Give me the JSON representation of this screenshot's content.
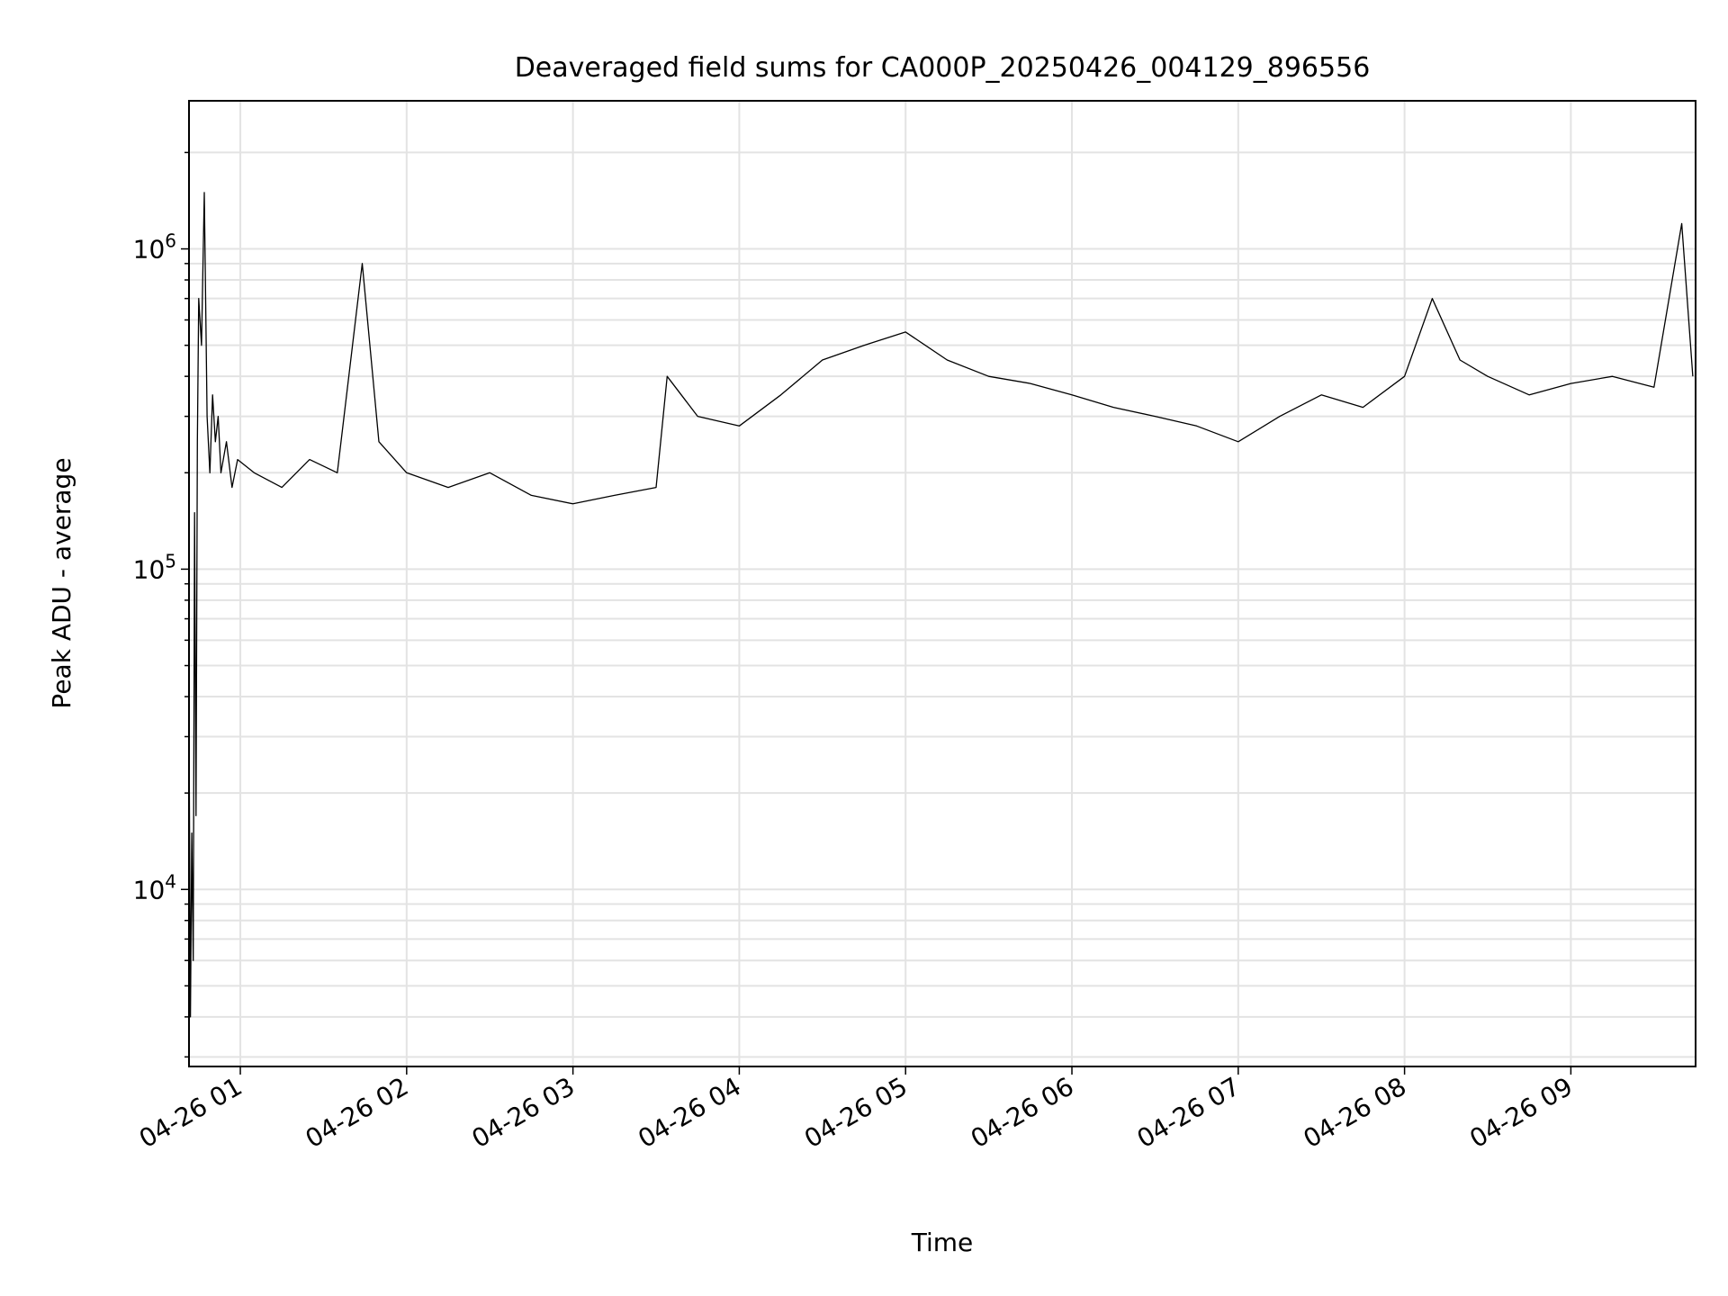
{
  "chart_data": {
    "type": "line",
    "title": "Deaveraged field sums for CA000P_20250426_004129_896556",
    "xlabel": "Time",
    "ylabel": "Peak ADU - average",
    "yscale": "log",
    "ylim": [
      2800,
      2900000
    ],
    "xlim": [
      "2025-04-26 00:41:29",
      "2025-04-26 09:45:00"
    ],
    "grid": true,
    "x_ticks": [
      "04-26 01",
      "04-26 02",
      "04-26 03",
      "04-26 04",
      "04-26 05",
      "04-26 06",
      "04-26 07",
      "04-26 08",
      "04-26 09"
    ],
    "y_ticks": [
      {
        "base": "10",
        "exp": "4",
        "value": 10000
      },
      {
        "base": "10",
        "exp": "5",
        "value": 100000
      },
      {
        "base": "10",
        "exp": "6",
        "value": 1000000
      }
    ],
    "line_color": "#000000",
    "series": [
      {
        "x": [
          "2025-04-26 00:41:30",
          "2025-04-26 00:42:00",
          "2025-04-26 00:42:30",
          "2025-04-26 00:43:00",
          "2025-04-26 00:43:30",
          "2025-04-26 00:44:00",
          "2025-04-26 00:44:30",
          "2025-04-26 00:45:00",
          "2025-04-26 00:46:00",
          "2025-04-26 00:47:00",
          "2025-04-26 00:48:00",
          "2025-04-26 00:49:00",
          "2025-04-26 00:50:00",
          "2025-04-26 00:51:00",
          "2025-04-26 00:52:00",
          "2025-04-26 00:53:00",
          "2025-04-26 00:55:00",
          "2025-04-26 00:57:00",
          "2025-04-26 00:59:00",
          "2025-04-26 01:05:00",
          "2025-04-26 01:15:00",
          "2025-04-26 01:25:00",
          "2025-04-26 01:35:00",
          "2025-04-26 01:44:00",
          "2025-04-26 01:50:00",
          "2025-04-26 02:00:00",
          "2025-04-26 02:15:00",
          "2025-04-26 02:30:00",
          "2025-04-26 02:45:00",
          "2025-04-26 03:00:00",
          "2025-04-26 03:15:00",
          "2025-04-26 03:30:00",
          "2025-04-26 03:34:00",
          "2025-04-26 03:45:00",
          "2025-04-26 04:00:00",
          "2025-04-26 04:15:00",
          "2025-04-26 04:30:00",
          "2025-04-26 04:45:00",
          "2025-04-26 05:00:00",
          "2025-04-26 05:15:00",
          "2025-04-26 05:30:00",
          "2025-04-26 05:45:00",
          "2025-04-26 06:00:00",
          "2025-04-26 06:15:00",
          "2025-04-26 06:30:00",
          "2025-04-26 06:45:00",
          "2025-04-26 07:00:00",
          "2025-04-26 07:15:00",
          "2025-04-26 07:30:00",
          "2025-04-26 07:45:00",
          "2025-04-26 08:00:00",
          "2025-04-26 08:10:00",
          "2025-04-26 08:20:00",
          "2025-04-26 08:30:00",
          "2025-04-26 08:45:00",
          "2025-04-26 09:00:00",
          "2025-04-26 09:15:00",
          "2025-04-26 09:30:00",
          "2025-04-26 09:40:00",
          "2025-04-26 09:44:00"
        ],
        "y": [
          30000,
          4000,
          15000,
          6000,
          150000,
          17000,
          250000,
          700000,
          500000,
          1500000,
          300000,
          200000,
          350000,
          250000,
          300000,
          200000,
          250000,
          180000,
          220000,
          200000,
          180000,
          220000,
          200000,
          900000,
          250000,
          200000,
          180000,
          200000,
          170000,
          160000,
          170000,
          180000,
          400000,
          300000,
          280000,
          350000,
          450000,
          500000,
          550000,
          450000,
          400000,
          380000,
          350000,
          320000,
          300000,
          280000,
          250000,
          300000,
          350000,
          320000,
          400000,
          700000,
          450000,
          400000,
          350000,
          380000,
          400000,
          370000,
          1200000,
          400000
        ]
      }
    ]
  }
}
